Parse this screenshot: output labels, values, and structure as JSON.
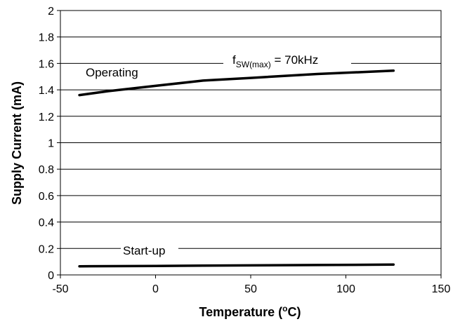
{
  "chart_data": {
    "type": "line",
    "title": "",
    "xlabel": "Temperature (",
    "xlabel_super": "o",
    "xlabel_tail": "C)",
    "ylabel": "Supply Current (mA)",
    "xlim": [
      -50,
      150
    ],
    "ylim": [
      0,
      2
    ],
    "xticks": [
      -50,
      0,
      50,
      100,
      150
    ],
    "xtick_labels": [
      "-50",
      "0",
      "50",
      "100",
      "150"
    ],
    "yticks": [
      0,
      0.2,
      0.4,
      0.6,
      0.8,
      1,
      1.2,
      1.4,
      1.6,
      1.8,
      2
    ],
    "ytick_labels": [
      "0",
      "0.2",
      "0.4",
      "0.6",
      "0.8",
      "1",
      "1.2",
      "1.4",
      "1.6",
      "1.8",
      "2"
    ],
    "grid": "horizontal",
    "series": [
      {
        "name": "Operating",
        "x": [
          -40,
          -25,
          0,
          25,
          50,
          85,
          125
        ],
        "y": [
          1.36,
          1.39,
          1.43,
          1.47,
          1.49,
          1.52,
          1.545
        ]
      },
      {
        "name": "Start-up",
        "x": [
          -40,
          0,
          25,
          50,
          85,
          125
        ],
        "y": [
          0.065,
          0.068,
          0.07,
          0.072,
          0.075,
          0.078
        ]
      }
    ],
    "annotations": {
      "fsw_main": "f",
      "fsw_sub": "SW(max)",
      "fsw_tail": " = 70kHz"
    }
  }
}
